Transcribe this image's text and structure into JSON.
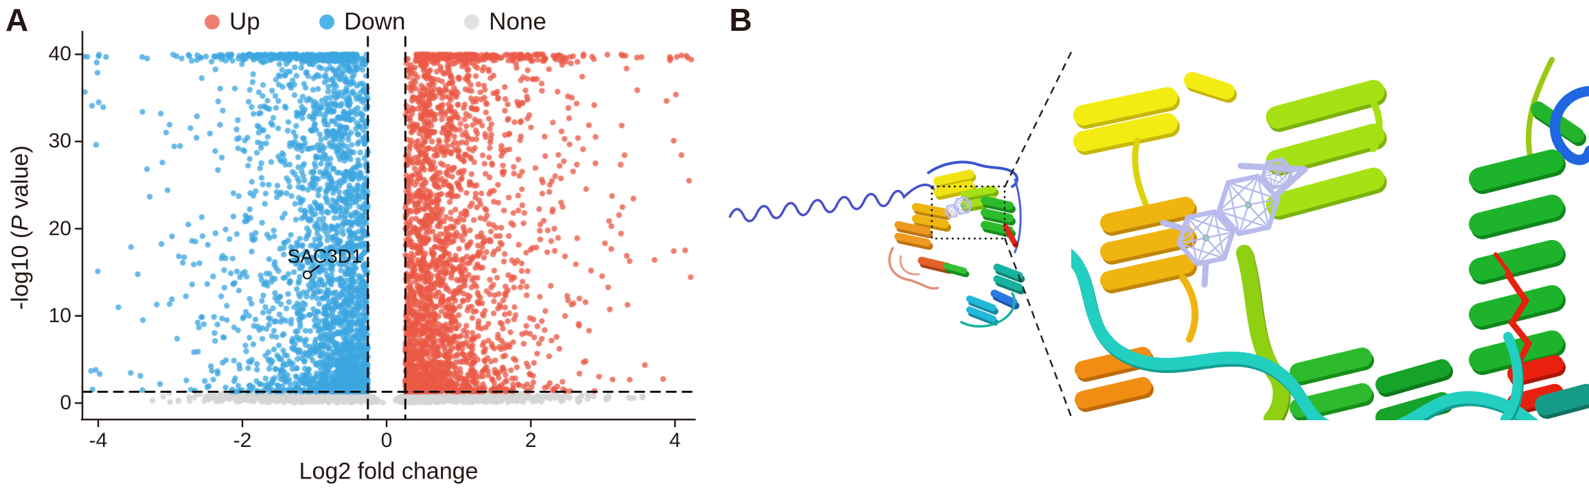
{
  "figure": {
    "panel_a": {
      "label": "A",
      "y_axis": {
        "label_prefix": "-log10 (",
        "label_italic": "P",
        "label_suffix": " value)"
      }
    },
    "panel_b": {
      "label": "B"
    }
  },
  "chart_data": {
    "type": "scatter",
    "subtype": "volcano",
    "title": "",
    "xlabel": "Log2 fold change",
    "ylabel": "-log10 (P value)",
    "xlim": [
      -4.25,
      4.3
    ],
    "ylim": [
      0,
      40
    ],
    "x_ticks": [
      -4,
      -2,
      0,
      2,
      4
    ],
    "y_ticks": [
      0,
      10,
      20,
      30,
      40
    ],
    "grid": false,
    "legend_position": "top",
    "series": [
      {
        "name": "Up",
        "legend_color": "#ee7e72",
        "point_color": "#ea5a46",
        "count": 2700,
        "direction": 1,
        "x_range": [
          0.26,
          4.3
        ],
        "y_range": [
          1.3,
          40
        ]
      },
      {
        "name": "Down",
        "legend_color": "#4fb5e8",
        "point_color": "#3ea6e0",
        "count": 2800,
        "direction": -1,
        "x_range": [
          -4.3,
          -0.26
        ],
        "y_range": [
          1.3,
          40
        ]
      },
      {
        "name": "None",
        "legend_color": "#e2e2e2",
        "point_color": "#d5d5d5",
        "count": 1500,
        "direction": 0,
        "x_range": [
          -3.6,
          3.6
        ],
        "y_range": [
          0,
          1.3
        ]
      }
    ],
    "thresholds": {
      "vlines": [
        -0.26,
        0.26
      ],
      "hline": 1.3,
      "line_style": "dashed"
    },
    "annotations": [
      {
        "text": "SAC3D1",
        "x": -1.1,
        "y": 14.7,
        "series": "Down"
      }
    ],
    "seed": 1337
  }
}
